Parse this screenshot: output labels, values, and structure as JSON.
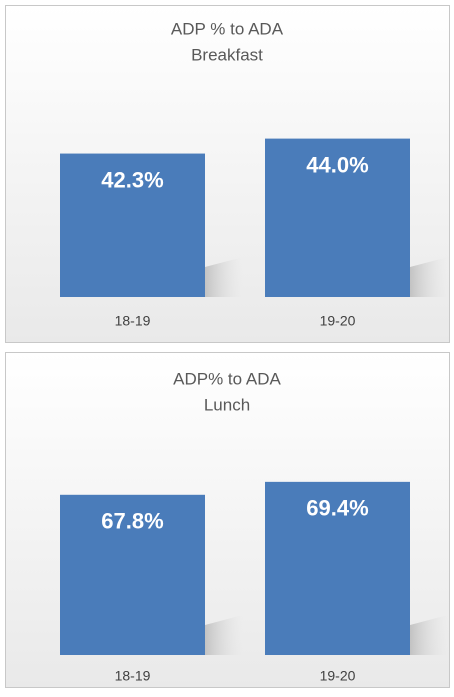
{
  "chart_data": [
    {
      "type": "bar",
      "title": "ADP % to ADA",
      "subtitle": "Breakfast",
      "categories": [
        "18-19",
        "19-20"
      ],
      "values": [
        42.3,
        44.0
      ],
      "value_labels": [
        "42.3%",
        "44.0%"
      ],
      "color": "#4a7cba",
      "ylim": [
        26,
        46
      ]
    },
    {
      "type": "bar",
      "title": "ADP% to ADA",
      "subtitle": "Lunch",
      "categories": [
        "18-19",
        "19-20"
      ],
      "values": [
        67.8,
        69.4
      ],
      "value_labels": [
        "67.8%",
        "69.4%"
      ],
      "color": "#4a7cba",
      "ylim": [
        48,
        70
      ]
    }
  ]
}
